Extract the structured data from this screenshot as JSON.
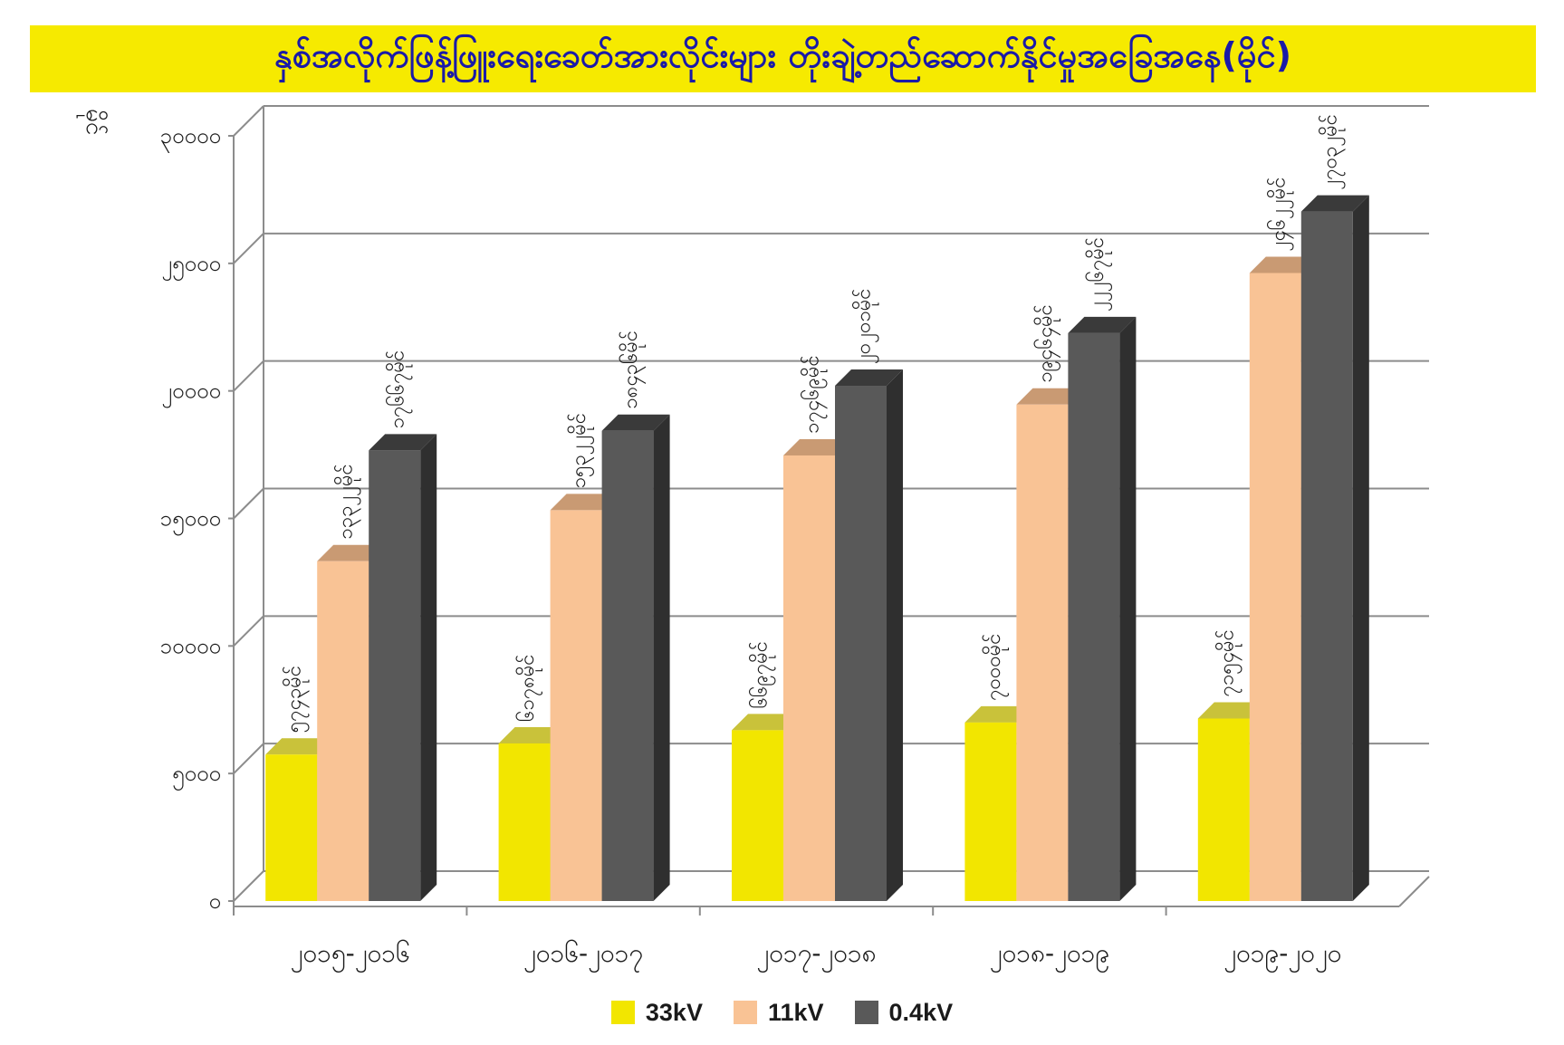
{
  "title": "နှစ်အလိုက်ဖြန့်ဖြူးရေးခေတ်အားလိုင်းများ တိုးချဲ့တည်ဆောက်နိုင်မှုအခြေအနေ(မိုင်)",
  "chart_data": {
    "type": "bar",
    "title": "နှစ်အလိုက်ဖြန့်ဖြူးရေးခေတ်အားလိုင်းများ တိုးချဲ့တည်ဆောက်နိုင်မှုအခြေအနေ(မိုင်)",
    "ylabel": "မိုင်",
    "ylim": [
      0,
      30000
    ],
    "yticks": [
      0,
      5000,
      10000,
      15000,
      20000,
      25000,
      30000
    ],
    "ytick_labels": [
      "၀",
      "၅၀၀၀",
      "၁၀၀၀၀",
      "၁၅၀၀၀",
      "၂၀၀၀၀",
      "၂၅၀၀၀",
      "၃၀၀၀၀"
    ],
    "categories": [
      "၂၀၁၅-၂၀၁၆",
      "၂၀၁၆-၂၀၁၇",
      "၂၀၁၇-၂၀၁၈",
      "၂၀၁၈-၂၀၁၉",
      "၂၀၁၉-၂၀၂၀"
    ],
    "series": [
      {
        "name": "33kV",
        "color": "#f2e600",
        "top_color": "#c9c23a",
        "side_color": "#c4bd10",
        "values": [
          5743,
          6178,
          6697,
          7000,
          7154
        ],
        "labels": [
          "၅၇၄၃မိုင်",
          "၆၁၇၈မိုင်",
          "၆၆၉၇မိုင်",
          "၇၀၀၀မိုင်",
          "၇၁၅၄မိုင်"
        ]
      },
      {
        "name": "11kV",
        "color": "#f9c395",
        "top_color": "#c99a73",
        "side_color": "#d9a47a",
        "values": [
          13322,
          15322,
          17469,
          19464,
          24622
        ],
        "labels": [
          "၁၃၃၂၂မိုင်",
          "၁၅၃၂၂မိုင်",
          "၁၇၄၆၉မိုင်",
          "၁၉၄၆၄မိုင်",
          "၂၄၆၂၂မိုင်"
        ]
      },
      {
        "name": "0.4kV",
        "color": "#595959",
        "top_color": "#3a3a3a",
        "side_color": "#2f2f2f",
        "values": [
          17667,
          18436,
          20201,
          22267,
          27032
        ],
        "labels": [
          "၁၇၆၆၇မိုင်",
          "၁၈၄၃၆မိုင်",
          "၂၀၂၀၁မိုင်",
          "၂၂၂၆၇မိုင်",
          "၂၇၀၃၂မိုင်"
        ]
      }
    ],
    "grid": true,
    "legend": "bottom-center"
  },
  "legend": {
    "items": [
      {
        "label": "33kV",
        "color": "#f2e600"
      },
      {
        "label": "11kV",
        "color": "#f9c395"
      },
      {
        "label": "0.4kV",
        "color": "#595959"
      }
    ]
  }
}
